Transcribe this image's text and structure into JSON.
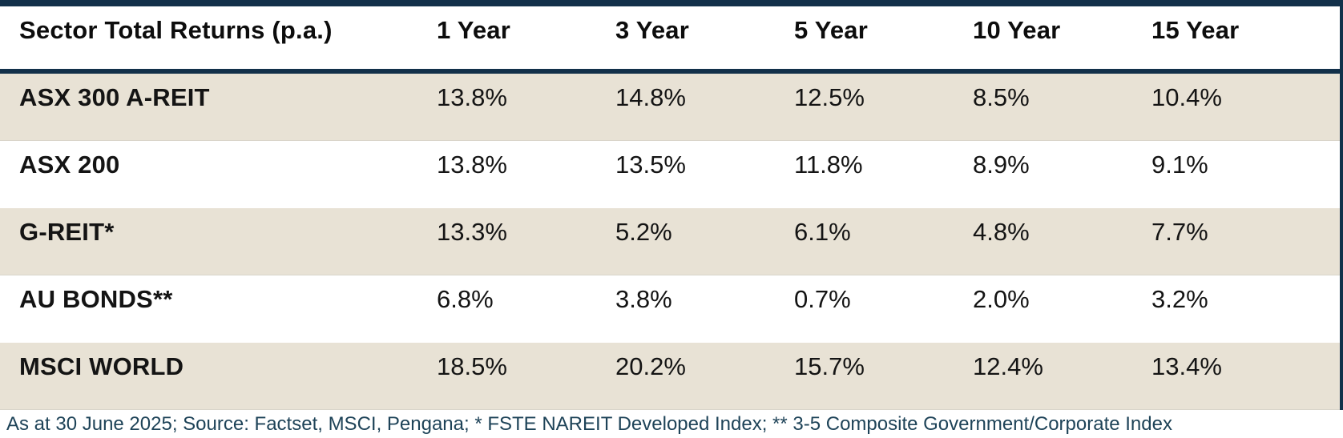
{
  "table": {
    "header": {
      "label": "Sector Total Returns (p.a.)",
      "columns": [
        "1 Year",
        "3 Year",
        "5 Year",
        "10 Year",
        "15 Year"
      ]
    },
    "rows": [
      {
        "label": "ASX 300 A-REIT",
        "values": [
          "13.8%",
          "14.8%",
          "12.5%",
          "8.5%",
          "10.4%"
        ]
      },
      {
        "label": "ASX 200",
        "values": [
          "13.8%",
          "13.5%",
          "11.8%",
          "8.9%",
          "9.1%"
        ]
      },
      {
        "label": "G-REIT*",
        "values": [
          "13.3%",
          "5.2%",
          "6.1%",
          "4.8%",
          "7.7%"
        ]
      },
      {
        "label": "AU BONDS**",
        "values": [
          "6.8%",
          "3.8%",
          "0.7%",
          "2.0%",
          "3.2%"
        ]
      },
      {
        "label": "MSCI WORLD",
        "values": [
          "18.5%",
          "20.2%",
          "15.7%",
          "12.4%",
          "13.4%"
        ]
      }
    ],
    "footnote": "As at 30 June 2025; Source: Factset, MSCI, Pengana; * FSTE NAREIT Developed Index; ** 3-5 Composite Government/Corporate Index"
  },
  "colors": {
    "accent_navy": "#12304a",
    "row_alt_beige": "#e8e2d5",
    "footnote_navy": "#1e4358"
  },
  "chart_data": {
    "type": "table",
    "title": "Sector Total Returns (p.a.)",
    "categories": [
      "1 Year",
      "3 Year",
      "5 Year",
      "10 Year",
      "15 Year"
    ],
    "series": [
      {
        "name": "ASX 300 A-REIT",
        "values": [
          13.8,
          14.8,
          12.5,
          8.5,
          10.4
        ],
        "unit": "%"
      },
      {
        "name": "ASX 200",
        "values": [
          13.8,
          13.5,
          11.8,
          8.9,
          9.1
        ],
        "unit": "%"
      },
      {
        "name": "G-REIT*",
        "values": [
          13.3,
          5.2,
          6.1,
          4.8,
          7.7
        ],
        "unit": "%"
      },
      {
        "name": "AU BONDS**",
        "values": [
          6.8,
          3.8,
          0.7,
          2.0,
          3.2
        ],
        "unit": "%"
      },
      {
        "name": "MSCI WORLD",
        "values": [
          18.5,
          20.2,
          15.7,
          12.4,
          13.4
        ],
        "unit": "%"
      }
    ],
    "annotations": [
      "As at 30 June 2025; Source: Factset, MSCI, Pengana; * FSTE NAREIT Developed Index; ** 3-5 Composite Government/Corporate Index"
    ],
    "layout": {
      "row_striping": "beige-white alternating",
      "first_column": "sector name",
      "values_alignment": "left"
    }
  }
}
